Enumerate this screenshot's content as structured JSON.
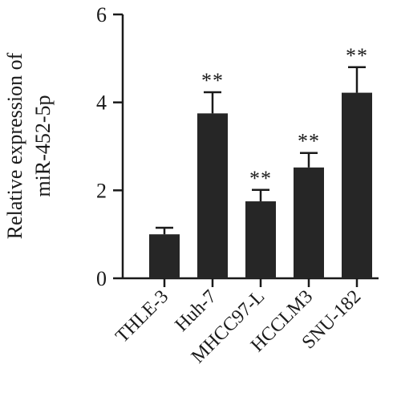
{
  "chart_data": {
    "type": "bar",
    "categories": [
      "THLE-3",
      "Huh-7",
      "MHCC97-L",
      "HCCLM3",
      "SNU-182"
    ],
    "values": [
      1.0,
      3.75,
      1.75,
      2.52,
      4.22
    ],
    "errors": [
      0.15,
      0.48,
      0.26,
      0.33,
      0.58
    ],
    "significance": [
      "",
      "**",
      "**",
      "**",
      "**"
    ],
    "ylabel_lines": [
      "Relative expression of",
      "miR-452-5p"
    ],
    "ylim": [
      0,
      6
    ],
    "yticks": [
      0,
      2,
      4,
      6
    ],
    "bar_color": "#262626",
    "axis_color": "#1a1a1a",
    "grid": false,
    "legend": "none"
  }
}
